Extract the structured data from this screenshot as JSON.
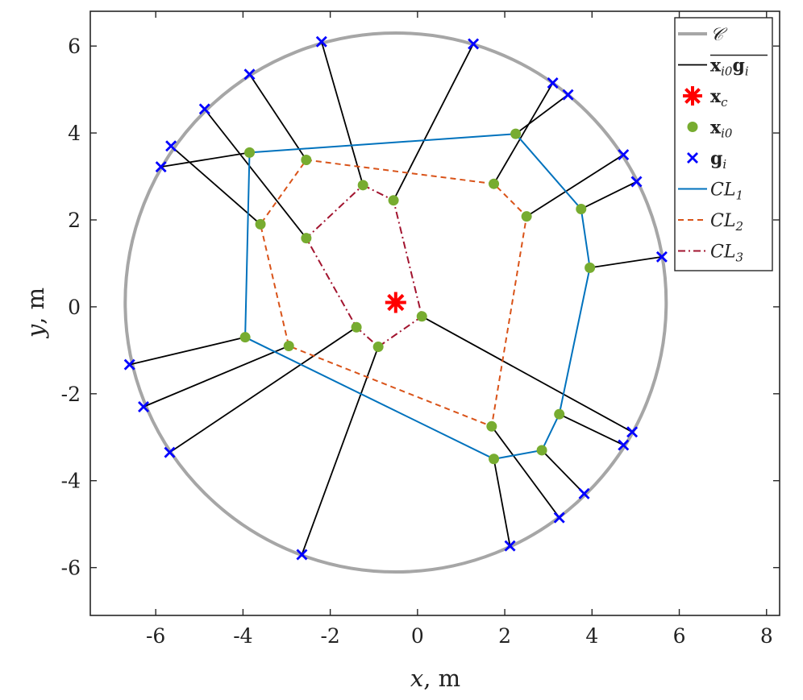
{
  "chart_data": {
    "type": "scatter",
    "title": "",
    "xlabel": "x, m",
    "ylabel": "y, m",
    "xlim": [
      -7.5,
      8.3
    ],
    "ylim": [
      -7.1,
      6.8
    ],
    "xticks": [
      -6,
      -4,
      -2,
      0,
      2,
      4,
      6,
      8
    ],
    "yticks": [
      -6,
      -4,
      -2,
      0,
      2,
      4,
      6
    ],
    "xtick_labels": [
      "-6",
      "-4",
      "-2",
      "0",
      "2",
      "4",
      "6",
      "8"
    ],
    "ytick_labels": [
      "-6",
      "-4",
      "-2",
      "0",
      "2",
      "4",
      "6"
    ],
    "grid": false,
    "legend_position": "top-right",
    "circle": {
      "name": "𝒞",
      "center": [
        -0.5,
        0.1
      ],
      "radius": 6.2,
      "color": "#a6a6a6"
    },
    "center_point": {
      "name": "x_c",
      "x": -0.5,
      "y": 0.1,
      "color": "#ff0000"
    },
    "pairs": [
      {
        "x0": [
          -3.85,
          3.55
        ],
        "g": [
          -5.88,
          3.22
        ]
      },
      {
        "x0": [
          -3.6,
          1.9
        ],
        "g": [
          -5.65,
          3.7
        ]
      },
      {
        "x0": [
          -2.55,
          1.58
        ],
        "g": [
          -4.88,
          4.55
        ]
      },
      {
        "x0": [
          -2.55,
          3.38
        ],
        "g": [
          -3.85,
          5.35
        ]
      },
      {
        "x0": [
          -1.25,
          2.8
        ],
        "g": [
          -2.2,
          6.1
        ]
      },
      {
        "x0": [
          -0.55,
          2.45
        ],
        "g": [
          1.28,
          6.05
        ]
      },
      {
        "x0": [
          1.75,
          2.83
        ],
        "g": [
          3.1,
          5.15
        ]
      },
      {
        "x0": [
          2.25,
          3.98
        ],
        "g": [
          3.45,
          4.88
        ]
      },
      {
        "x0": [
          2.5,
          2.08
        ],
        "g": [
          4.72,
          3.5
        ]
      },
      {
        "x0": [
          3.75,
          2.25
        ],
        "g": [
          5.02,
          2.88
        ]
      },
      {
        "x0": [
          3.95,
          0.9
        ],
        "g": [
          5.6,
          1.15
        ]
      },
      {
        "x0": [
          0.1,
          -0.22
        ],
        "g": [
          4.92,
          -2.88
        ]
      },
      {
        "x0": [
          3.25,
          -2.47
        ],
        "g": [
          4.72,
          -3.18
        ]
      },
      {
        "x0": [
          2.85,
          -3.3
        ],
        "g": [
          3.82,
          -4.3
        ]
      },
      {
        "x0": [
          1.7,
          -2.75
        ],
        "g": [
          3.25,
          -4.85
        ]
      },
      {
        "x0": [
          1.75,
          -3.5
        ],
        "g": [
          2.12,
          -5.5
        ]
      },
      {
        "x0": [
          -0.9,
          -0.92
        ],
        "g": [
          -2.65,
          -5.7
        ]
      },
      {
        "x0": [
          -1.4,
          -0.47
        ],
        "g": [
          -5.68,
          -3.35
        ]
      },
      {
        "x0": [
          -2.95,
          -0.9
        ],
        "g": [
          -6.28,
          -2.3
        ]
      },
      {
        "x0": [
          -3.95,
          -0.7
        ],
        "g": [
          -6.6,
          -1.33
        ]
      }
    ],
    "series": [
      {
        "name": "CL1",
        "color": "#0072bd",
        "dash": "solid",
        "points": [
          [
            -3.85,
            3.55
          ],
          [
            2.25,
            3.98
          ],
          [
            3.75,
            2.25
          ],
          [
            3.95,
            0.9
          ],
          [
            3.25,
            -2.47
          ],
          [
            2.85,
            -3.3
          ],
          [
            1.75,
            -3.5
          ],
          [
            -3.95,
            -0.7
          ],
          [
            -3.85,
            3.55
          ]
        ]
      },
      {
        "name": "CL2",
        "color": "#d95319",
        "dash": "dashed",
        "points": [
          [
            -2.55,
            3.38
          ],
          [
            1.75,
            2.83
          ],
          [
            2.5,
            2.08
          ],
          [
            1.7,
            -2.75
          ],
          [
            -2.95,
            -0.9
          ],
          [
            -3.6,
            1.9
          ],
          [
            -2.55,
            3.38
          ]
        ]
      },
      {
        "name": "CL3",
        "color": "#a2142f",
        "dash": "dashdot",
        "points": [
          [
            -1.25,
            2.8
          ],
          [
            -0.55,
            2.45
          ],
          [
            0.1,
            -0.22
          ],
          [
            -0.9,
            -0.92
          ],
          [
            -1.4,
            -0.47
          ],
          [
            -2.55,
            1.58
          ],
          [
            -1.25,
            2.8
          ]
        ]
      }
    ],
    "legend": {
      "entries": [
        {
          "key": "circle",
          "text": "𝒞",
          "style": "ital"
        },
        {
          "key": "pairs",
          "text": "x",
          "sub": "i0",
          "text2": "g",
          "sub2": "i",
          "overline": true,
          "style": "bold"
        },
        {
          "key": "center",
          "text": "x",
          "sub": "c",
          "style": "bold"
        },
        {
          "key": "x0",
          "text": "x",
          "sub": "i0",
          "style": "bold"
        },
        {
          "key": "g",
          "text": "g",
          "sub": "i",
          "style": "bold"
        },
        {
          "key": "CL1",
          "text": "CL",
          "sub": "1",
          "style": "ital"
        },
        {
          "key": "CL2",
          "text": "CL",
          "sub": "2",
          "style": "ital"
        },
        {
          "key": "CL3",
          "text": "CL",
          "sub": "3",
          "style": "ital"
        }
      ]
    },
    "colors": {
      "x0_marker": "#77ac30",
      "g_marker": "#0000ff",
      "pair_line": "#000000"
    }
  }
}
